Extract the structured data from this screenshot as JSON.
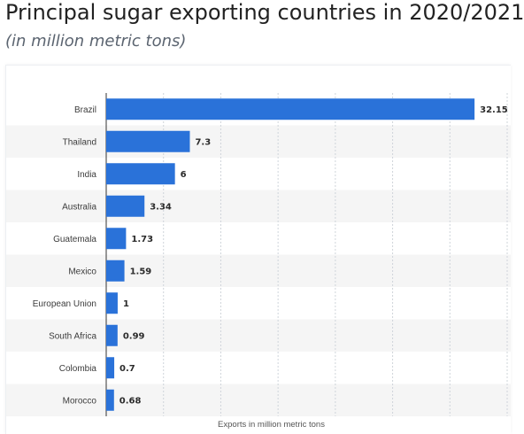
{
  "header": {
    "title": "Principal sugar exporting countries in 2020/2021",
    "subtitle": "(in million metric tons)"
  },
  "colors": {
    "bar": "#2a72d9",
    "band": "#f5f5f5",
    "grid": "#cfd4da"
  },
  "chart_data": {
    "type": "bar",
    "orientation": "horizontal",
    "categories": [
      "Brazil",
      "Thailand",
      "India",
      "Australia",
      "Guatemala",
      "Mexico",
      "European Union",
      "South Africa",
      "Colombia",
      "Morocco"
    ],
    "values": [
      32.15,
      7.3,
      6,
      3.34,
      1.73,
      1.59,
      1,
      0.99,
      0.7,
      0.68
    ],
    "value_labels": [
      "32.15",
      "7.3",
      "6",
      "3.34",
      "1.73",
      "1.59",
      "1",
      "0.99",
      "0.7",
      "0.68"
    ],
    "xlabel": "Exports in million metric tons",
    "xlim": [
      0,
      35
    ],
    "grid": true
  }
}
